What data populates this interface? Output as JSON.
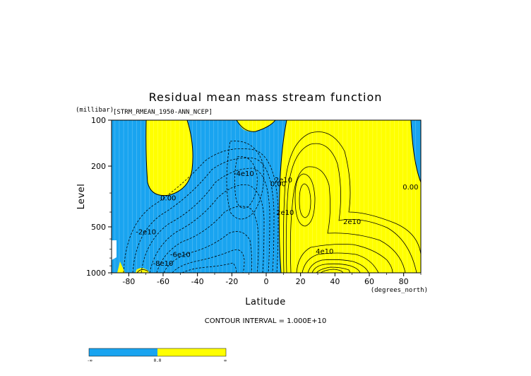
{
  "chart_data": {
    "type": "heatmap",
    "title": "Residual mean mass stream function",
    "subtitle": "[STRM_RMEAN_1950-ANN_NCEP]",
    "xlabel": "Latitude",
    "x_units": "(degrees_north)",
    "ylabel": "Level",
    "y_units": "(millibar)",
    "xlim": [
      -90,
      90
    ],
    "ylim": [
      1000,
      100
    ],
    "y_scale": "log",
    "x_ticks": [
      -80,
      -60,
      -40,
      -20,
      0,
      20,
      40,
      60,
      80
    ],
    "x_tick_labels": [
      "-80",
      "-60",
      "-40",
      "-20",
      "0",
      "20",
      "40",
      "60",
      "80"
    ],
    "y_ticks": [
      100,
      200,
      500,
      1000
    ],
    "y_tick_labels": [
      "100",
      "200",
      "500",
      "1000"
    ],
    "contour_interval_label": "CONTOUR INTERVAL = 1.000E+10",
    "fill_colors": {
      "negative": "#19a4f0",
      "positive": "#ffff00"
    },
    "colorbar": {
      "labels": [
        "-∞",
        "0.0",
        "∞"
      ],
      "colors": [
        "#19a4f0",
        "#ffff00"
      ]
    },
    "contour_labels": [
      {
        "text": "0.00",
        "lat": -57,
        "lev": 322
      },
      {
        "text": "-4e10",
        "lat": -13,
        "lev": 222
      },
      {
        "text": "-2e10",
        "lat": -70,
        "lev": 535
      },
      {
        "text": "-6e10",
        "lat": -50,
        "lev": 755
      },
      {
        "text": "-8e10",
        "lat": -60,
        "lev": 860
      },
      {
        "text": "0.00",
        "lat": 7,
        "lev": 260
      },
      {
        "text": "2e10",
        "lat": 10,
        "lev": 245
      },
      {
        "text": "2e10",
        "lat": 11,
        "lev": 400
      },
      {
        "text": "2e10",
        "lat": 50,
        "lev": 460
      },
      {
        "text": "4e10",
        "lat": 34,
        "lev": 720
      },
      {
        "text": "0.00",
        "lat": 84,
        "lev": 272
      }
    ],
    "fields": {
      "stream_function_extrema_1e10": [
        {
          "lat": -55,
          "lev": 950,
          "value": -8
        },
        {
          "lat": -20,
          "lev": 320,
          "value": -4
        },
        {
          "lat": 30,
          "lev": 950,
          "value": 9
        },
        {
          "lat": 20,
          "lev": 330,
          "value": 3
        }
      ]
    }
  }
}
